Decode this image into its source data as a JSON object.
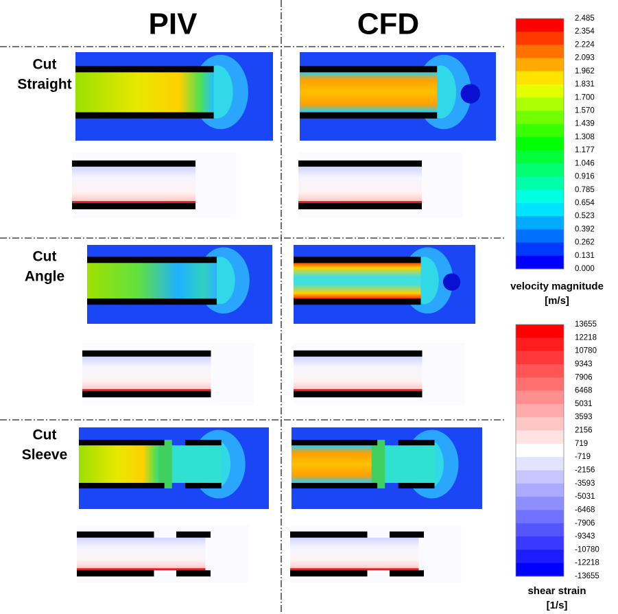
{
  "header": {
    "columns": [
      "PIV",
      "CFD"
    ]
  },
  "rows": [
    {
      "label_lines": [
        "Cut",
        "Straight"
      ]
    },
    {
      "label_lines": [
        "Cut",
        "Angle"
      ]
    },
    {
      "label_lines": [
        "Cut",
        "Sleeve"
      ]
    }
  ],
  "colorbars": [
    {
      "ticks": [
        "2.485",
        "2.354",
        "2.224",
        "2.093",
        "1.962",
        "1.831",
        "1.700",
        "1.570",
        "1.439",
        "1.308",
        "1.177",
        "1.046",
        "0.916",
        "0.785",
        "0.654",
        "0.523",
        "0.392",
        "0.262",
        "0.131",
        "0.000"
      ],
      "label_lines": [
        "velocity magnitude",
        "[m/s]"
      ]
    },
    {
      "ticks": [
        "13655",
        "12218",
        "10780",
        "9343",
        "7906",
        "6468",
        "5031",
        "3593",
        "2156",
        "719",
        "-719",
        "-2156",
        "-3593",
        "-5031",
        "-6468",
        "-7906",
        "-9343",
        "-10780",
        "-12218",
        "-13655"
      ],
      "label_lines": [
        "shear strain",
        "[1/s]"
      ]
    }
  ]
}
